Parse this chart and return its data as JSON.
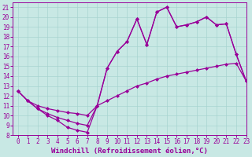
{
  "xlabel": "Windchill (Refroidissement éolien,°C)",
  "xlim": [
    -0.5,
    23
  ],
  "ylim": [
    8,
    21.5
  ],
  "xticks": [
    0,
    1,
    2,
    3,
    4,
    5,
    6,
    7,
    8,
    9,
    10,
    11,
    12,
    13,
    14,
    15,
    16,
    17,
    18,
    19,
    20,
    21,
    22,
    23
  ],
  "yticks": [
    8,
    9,
    10,
    11,
    12,
    13,
    14,
    15,
    16,
    17,
    18,
    19,
    20,
    21
  ],
  "bg_color": "#c8e8e4",
  "line_color": "#990099",
  "grid_color": "#a8d4d0",
  "line1_y": [
    12.5,
    11.5,
    10.7,
    10.0,
    9.5,
    8.8,
    8.5,
    8.3,
    11.0,
    14.8,
    16.5,
    17.5,
    19.8,
    17.2,
    20.5,
    21.0,
    19.0,
    19.2,
    19.5,
    20.0,
    19.2,
    19.3,
    16.2,
    13.5
  ],
  "line2_y": [
    12.5,
    11.5,
    11.0,
    10.7,
    10.5,
    10.3,
    10.2,
    10.0,
    11.0,
    11.5,
    12.0,
    12.5,
    13.0,
    13.3,
    13.7,
    14.0,
    14.2,
    14.4,
    14.6,
    14.8,
    15.0,
    15.2,
    15.3,
    13.5
  ],
  "line3_y": [
    12.5,
    11.5,
    10.7,
    10.2,
    9.8,
    9.5,
    9.2,
    9.0,
    11.0,
    14.8,
    16.5,
    17.5,
    19.8,
    17.2,
    20.5,
    21.0,
    19.0,
    19.2,
    19.5,
    20.0,
    19.2,
    19.3,
    16.2,
    13.5
  ],
  "markersize": 2.5,
  "linewidth": 0.9,
  "tick_fontsize": 5.5,
  "xlabel_fontsize": 6.5
}
